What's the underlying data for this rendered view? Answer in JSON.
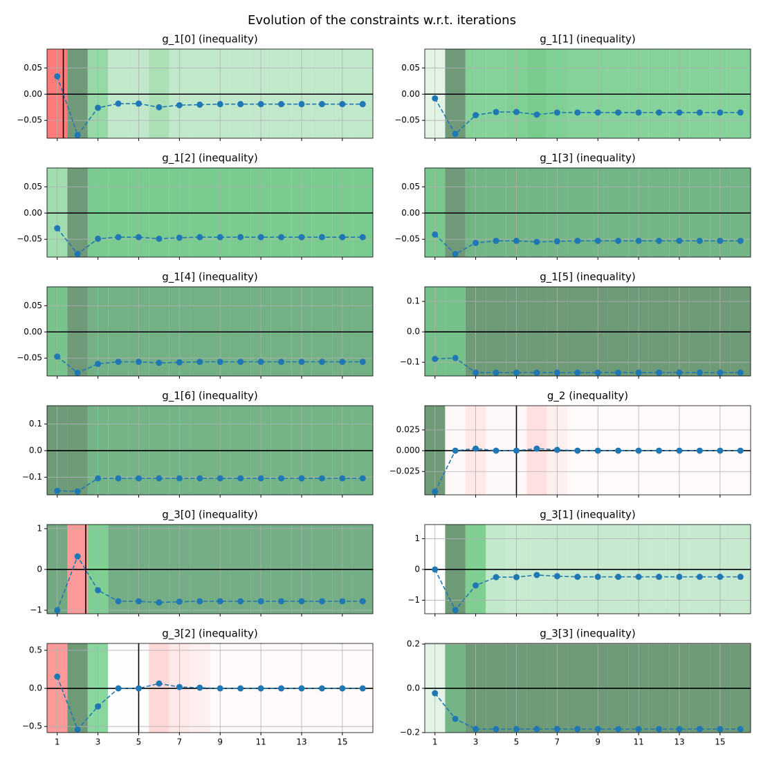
{
  "title": "Evolution of the constraints w.r.t. iterations",
  "chart_data": [
    {
      "type": "line",
      "title": "g_1[0] (inequality)",
      "x": [
        1,
        2,
        3,
        4,
        5,
        6,
        7,
        8,
        9,
        10,
        11,
        12,
        13,
        14,
        15,
        16
      ],
      "values": [
        0.034,
        -0.078,
        -0.026,
        -0.018,
        -0.018,
        -0.025,
        -0.021,
        -0.02,
        -0.019,
        -0.019,
        -0.019,
        -0.019,
        -0.019,
        -0.019,
        -0.019,
        -0.019
      ],
      "color": "#1f77b4",
      "band_colors": [
        "#ff7b7b",
        "#70997a",
        "#96d9a7",
        "#c2e8cc",
        "#c2e8cc",
        "#abe0b7",
        "#c2e8cc",
        "#c2e8cc",
        "#c2e8cc",
        "#c2e8cc",
        "#c2e8cc",
        "#c2e8cc",
        "#c2e8cc",
        "#c2e8cc",
        "#c2e8cc",
        "#c2e8cc"
      ],
      "vline": 1.3,
      "hline": 0,
      "xlim": [
        0.5,
        16.5
      ],
      "ylim": [
        -0.084,
        0.086
      ],
      "xticks": [
        1,
        3,
        5,
        7,
        9,
        11,
        13,
        15
      ],
      "yticks": [
        0.05,
        {
          "value": 0,
          "label": "0.00"
        },
        {
          "value": -0.05,
          "label": "−0.05"
        }
      ],
      "grid": true
    },
    {
      "type": "line",
      "title": "g_1[1] (inequality)",
      "x": [
        1,
        2,
        3,
        4,
        5,
        6,
        7,
        8,
        9,
        10,
        11,
        12,
        13,
        14,
        15,
        16
      ],
      "values": [
        -0.008,
        -0.076,
        -0.04,
        -0.034,
        -0.034,
        -0.039,
        -0.035,
        -0.035,
        -0.035,
        -0.035,
        -0.035,
        -0.035,
        -0.035,
        -0.035,
        -0.035,
        -0.035
      ],
      "color": "#1f77b4",
      "band_colors": [
        "#e3f4e7",
        "#70997a",
        "#85d29a",
        "#85d29a",
        "#80d095",
        "#78cc8e",
        "#80d095",
        "#85d29a",
        "#85d29a",
        "#85d29a",
        "#85d29a",
        "#85d29a",
        "#85d29a",
        "#85d29a",
        "#85d29a",
        "#85d29a"
      ],
      "hline": 0,
      "xlim": [
        0.5,
        16.5
      ],
      "ylim": [
        -0.084,
        0.086
      ],
      "xticks": [
        1,
        3,
        5,
        7,
        9,
        11,
        13,
        15
      ],
      "yticks": [
        0.05,
        {
          "value": 0,
          "label": "0.00"
        },
        {
          "value": -0.05,
          "label": "−0.05"
        }
      ],
      "grid": true
    },
    {
      "type": "line",
      "title": "g_1[2] (inequality)",
      "x": [
        1,
        2,
        3,
        4,
        5,
        6,
        7,
        8,
        9,
        10,
        11,
        12,
        13,
        14,
        15,
        16
      ],
      "values": [
        -0.029,
        -0.078,
        -0.049,
        -0.046,
        -0.046,
        -0.049,
        -0.047,
        -0.046,
        -0.046,
        -0.046,
        -0.046,
        -0.046,
        -0.046,
        -0.046,
        -0.046,
        -0.046
      ],
      "color": "#1f77b4",
      "band_colors": [
        "#a0dcae",
        "#70997a",
        "#7acb8f",
        "#7acb8f",
        "#7acb8f",
        "#7acb8f",
        "#7acb8f",
        "#7acb8f",
        "#7acb8f",
        "#7acb8f",
        "#7acb8f",
        "#7acb8f",
        "#7acb8f",
        "#7acb8f",
        "#7acb8f",
        "#7acb8f"
      ],
      "hline": 0,
      "xlim": [
        0.5,
        16.5
      ],
      "ylim": [
        -0.084,
        0.086
      ],
      "xticks": [
        1,
        3,
        5,
        7,
        9,
        11,
        13,
        15
      ],
      "yticks": [
        0.05,
        {
          "value": 0,
          "label": "0.00"
        },
        {
          "value": -0.05,
          "label": "−0.05"
        }
      ],
      "grid": true
    },
    {
      "type": "line",
      "title": "g_1[3] (inequality)",
      "x": [
        1,
        2,
        3,
        4,
        5,
        6,
        7,
        8,
        9,
        10,
        11,
        12,
        13,
        14,
        15,
        16
      ],
      "values": [
        -0.041,
        -0.078,
        -0.057,
        -0.053,
        -0.053,
        -0.055,
        -0.054,
        -0.053,
        -0.053,
        -0.053,
        -0.053,
        -0.053,
        -0.053,
        -0.053,
        -0.053,
        -0.053
      ],
      "color": "#1f77b4",
      "band_colors": [
        "#78c88d",
        "#70997a",
        "#74b587",
        "#74b587",
        "#74b587",
        "#74b587",
        "#74b587",
        "#74b587",
        "#74b587",
        "#74b587",
        "#74b587",
        "#74b587",
        "#74b587",
        "#74b587",
        "#74b587",
        "#74b587"
      ],
      "hline": 0,
      "xlim": [
        0.5,
        16.5
      ],
      "ylim": [
        -0.084,
        0.086
      ],
      "xticks": [
        1,
        3,
        5,
        7,
        9,
        11,
        13,
        15
      ],
      "yticks": [
        0.05,
        {
          "value": 0,
          "label": "0.00"
        },
        {
          "value": -0.05,
          "label": "−0.05"
        }
      ],
      "grid": true
    },
    {
      "type": "line",
      "title": "g_1[4] (inequality)",
      "x": [
        1,
        2,
        3,
        4,
        5,
        6,
        7,
        8,
        9,
        10,
        11,
        12,
        13,
        14,
        15,
        16
      ],
      "values": [
        -0.047,
        -0.078,
        -0.061,
        -0.057,
        -0.057,
        -0.059,
        -0.058,
        -0.057,
        -0.057,
        -0.057,
        -0.057,
        -0.057,
        -0.057,
        -0.057,
        -0.057,
        -0.057
      ],
      "color": "#1f77b4",
      "band_colors": [
        "#78c28c",
        "#70997a",
        "#74b086",
        "#74b086",
        "#74b086",
        "#74b086",
        "#74b086",
        "#74b086",
        "#74b086",
        "#74b086",
        "#74b086",
        "#74b086",
        "#74b086",
        "#74b086",
        "#74b086",
        "#74b086"
      ],
      "hline": 0,
      "xlim": [
        0.5,
        16.5
      ],
      "ylim": [
        -0.084,
        0.086
      ],
      "xticks": [
        1,
        3,
        5,
        7,
        9,
        11,
        13,
        15
      ],
      "yticks": [
        0.05,
        {
          "value": 0,
          "label": "0.00"
        },
        {
          "value": -0.05,
          "label": "−0.05"
        }
      ],
      "grid": true
    },
    {
      "type": "line",
      "title": "g_1[5] (inequality)",
      "x": [
        1,
        2,
        3,
        4,
        5,
        6,
        7,
        8,
        9,
        10,
        11,
        12,
        13,
        14,
        15,
        16
      ],
      "values": [
        -0.089,
        -0.086,
        -0.134,
        -0.134,
        -0.134,
        -0.134,
        -0.134,
        -0.134,
        -0.134,
        -0.134,
        -0.134,
        -0.134,
        -0.134,
        -0.134,
        -0.134,
        -0.134
      ],
      "color": "#1f77b4",
      "band_colors": [
        "#76c08b",
        "#76c08b",
        "#6f9a78",
        "#6f9a78",
        "#6f9a78",
        "#6f9a78",
        "#6f9a78",
        "#6f9a78",
        "#6f9a78",
        "#6f9a78",
        "#6f9a78",
        "#6f9a78",
        "#6f9a78",
        "#6f9a78",
        "#6f9a78",
        "#6f9a78"
      ],
      "hline": 0,
      "xlim": [
        0.5,
        16.5
      ],
      "ylim": [
        -0.145,
        0.148
      ],
      "xticks": [
        1,
        3,
        5,
        7,
        9,
        11,
        13,
        15
      ],
      "yticks": [
        0.1,
        {
          "value": 0,
          "label": "0.0"
        },
        {
          "value": -0.1,
          "label": "−0.1"
        }
      ],
      "grid": true
    },
    {
      "type": "line",
      "title": "g_1[6] (inequality)",
      "x": [
        1,
        2,
        3,
        4,
        5,
        6,
        7,
        8,
        9,
        10,
        11,
        12,
        13,
        14,
        15,
        16
      ],
      "values": [
        -0.151,
        -0.153,
        -0.104,
        -0.104,
        -0.104,
        -0.104,
        -0.104,
        -0.104,
        -0.104,
        -0.104,
        -0.104,
        -0.104,
        -0.104,
        -0.104,
        -0.104,
        -0.104
      ],
      "color": "#1f77b4",
      "band_colors": [
        "#6f9a78",
        "#6f9a78",
        "#74b487",
        "#74b487",
        "#74b487",
        "#74b487",
        "#74b487",
        "#74b487",
        "#74b487",
        "#74b487",
        "#74b487",
        "#74b487",
        "#74b487",
        "#74b487",
        "#74b487",
        "#74b487"
      ],
      "hline": 0,
      "xlim": [
        0.5,
        16.5
      ],
      "ylim": [
        -0.166,
        0.169
      ],
      "xticks": [
        1,
        3,
        5,
        7,
        9,
        11,
        13,
        15
      ],
      "yticks": [
        0.1,
        {
          "value": 0,
          "label": "0.0"
        },
        {
          "value": -0.1,
          "label": "−0.1"
        }
      ],
      "grid": true
    },
    {
      "type": "line",
      "title": "g_2 (inequality)",
      "x": [
        1,
        2,
        3,
        4,
        5,
        6,
        7,
        8,
        9,
        10,
        11,
        12,
        13,
        14,
        15,
        16
      ],
      "values": [
        -0.049,
        0,
        0.0025,
        0,
        0,
        0.0025,
        0.001,
        0,
        0,
        0,
        0,
        0,
        0,
        0,
        0,
        0
      ],
      "color": "#1f77b4",
      "band_colors": [
        "#6f9a78",
        "#fff8f8",
        "#ffe8e8",
        "#fff8f8",
        "#fff8f8",
        "#ffe0e0",
        "#fff0f0",
        "#fffafa",
        "#fffafa",
        "#fffafa",
        "#fffafa",
        "#fffafa",
        "#fffafa",
        "#fffafa",
        "#fffafa",
        "#fffafa"
      ],
      "vline": 5,
      "hline": 0,
      "xlim": [
        0.5,
        16.5
      ],
      "ylim": [
        -0.053,
        0.054
      ],
      "xticks": [
        1,
        3,
        5,
        7,
        9,
        11,
        13,
        15
      ],
      "yticks": [
        0.025,
        {
          "value": 0,
          "label": "0.000"
        },
        {
          "value": -0.025,
          "label": "−0.025"
        }
      ],
      "grid": true
    },
    {
      "type": "line",
      "title": "g_3[0] (inequality)",
      "x": [
        1,
        2,
        3,
        4,
        5,
        6,
        7,
        8,
        9,
        10,
        11,
        12,
        13,
        14,
        15,
        16
      ],
      "values": [
        -1.0,
        0.32,
        -0.51,
        -0.78,
        -0.78,
        -0.81,
        -0.79,
        -0.78,
        -0.78,
        -0.78,
        -0.78,
        -0.78,
        -0.78,
        -0.78,
        -0.78,
        -0.78
      ],
      "color": "#1f77b4",
      "band_colors": [
        "#74a882",
        "#ff9a9a",
        "#7fcf93",
        "#74ad86",
        "#74ad86",
        "#74ad86",
        "#74ad86",
        "#74ad86",
        "#74ad86",
        "#74ad86",
        "#74ad86",
        "#74ad86",
        "#74ad86",
        "#74ad86",
        "#74ad86",
        "#74ad86"
      ],
      "vline": 2.4,
      "hline": 0,
      "xlim": [
        0.5,
        16.5
      ],
      "ylim": [
        -1.085,
        1.1
      ],
      "xticks": [
        1,
        3,
        5,
        7,
        9,
        11,
        13,
        15
      ],
      "yticks": [
        1,
        0,
        {
          "value": -1,
          "label": "−1"
        }
      ],
      "grid": true
    },
    {
      "type": "line",
      "title": "g_3[1] (inequality)",
      "x": [
        1,
        2,
        3,
        4,
        5,
        6,
        7,
        8,
        9,
        10,
        11,
        12,
        13,
        14,
        15,
        16
      ],
      "values": [
        0,
        -1.32,
        -0.52,
        -0.25,
        -0.25,
        -0.18,
        -0.22,
        -0.24,
        -0.24,
        -0.24,
        -0.24,
        -0.24,
        -0.24,
        -0.24,
        -0.24,
        -0.24
      ],
      "color": "#1f77b4",
      "band_colors": [
        "#ffffff",
        "#6f9a78",
        "#7fcf93",
        "#c2e8cc",
        "#c8eacf",
        "#c6e9d0",
        "#c6e9d0",
        "#c6e9d0",
        "#c6e9d0",
        "#c6e9d0",
        "#c6e9d0",
        "#c6e9d0",
        "#c6e9d0",
        "#c6e9d0",
        "#c6e9d0",
        "#c6e9d0"
      ],
      "hline": 0,
      "xlim": [
        0.5,
        16.5
      ],
      "ylim": [
        -1.44,
        1.46
      ],
      "xticks": [
        1,
        3,
        5,
        7,
        9,
        11,
        13,
        15
      ],
      "yticks": [
        1,
        0,
        {
          "value": -1,
          "label": "−1"
        }
      ],
      "grid": true
    },
    {
      "type": "line",
      "title": "g_3[2] (inequality)",
      "x": [
        1,
        2,
        3,
        4,
        5,
        6,
        7,
        8,
        9,
        10,
        11,
        12,
        13,
        14,
        15,
        16
      ],
      "values": [
        0.155,
        -0.54,
        -0.236,
        0,
        0,
        0.064,
        0.018,
        0.009,
        0,
        0,
        0,
        0,
        0,
        0,
        0,
        0
      ],
      "color": "#1f77b4",
      "band_colors": [
        "#ff9a9a",
        "#6f9a78",
        "#8ad69f",
        "#fefefe",
        "#fefefe",
        "#ffd8d8",
        "#ffe8e8",
        "#fff0f0",
        "#fffafa",
        "#fffafa",
        "#fffafa",
        "#fffafa",
        "#fffafa",
        "#fffafa",
        "#fffafa",
        "#fffafa"
      ],
      "vline": 5,
      "hline": 0,
      "xlim": [
        0.5,
        16.5
      ],
      "ylim": [
        -0.58,
        0.59
      ],
      "xticks": [
        1,
        3,
        5,
        7,
        9,
        11,
        13,
        15
      ],
      "yticks": [
        0.5,
        {
          "value": 0,
          "label": "0.0"
        },
        {
          "value": -0.5,
          "label": "−0.5"
        }
      ],
      "grid": true
    },
    {
      "type": "line",
      "title": "g_3[3] (inequality)",
      "x": [
        1,
        2,
        3,
        4,
        5,
        6,
        7,
        8,
        9,
        10,
        11,
        12,
        13,
        14,
        15,
        16
      ],
      "values": [
        -0.022,
        -0.138,
        -0.184,
        -0.184,
        -0.184,
        -0.184,
        -0.184,
        -0.184,
        -0.184,
        -0.184,
        -0.184,
        -0.184,
        -0.184,
        -0.184,
        -0.184,
        -0.184
      ],
      "color": "#1f77b4",
      "band_colors": [
        "#e3f4e7",
        "#74b487",
        "#6f9a78",
        "#6f9a78",
        "#6f9a78",
        "#6f9a78",
        "#6f9a78",
        "#6f9a78",
        "#6f9a78",
        "#6f9a78",
        "#6f9a78",
        "#6f9a78",
        "#6f9a78",
        "#6f9a78",
        "#6f9a78",
        "#6f9a78"
      ],
      "hline": 0,
      "xlim": [
        0.5,
        16.5
      ],
      "ylim": [
        -0.2,
        0.203
      ],
      "xticks": [
        1,
        3,
        5,
        7,
        9,
        11,
        13,
        15
      ],
      "yticks": [
        0.2,
        {
          "value": 0,
          "label": "0.0"
        },
        {
          "value": -0.2,
          "label": "−0.2"
        }
      ],
      "grid": true
    }
  ]
}
